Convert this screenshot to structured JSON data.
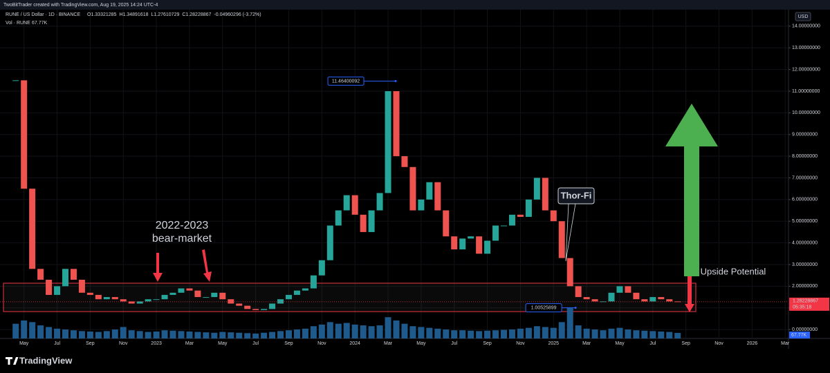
{
  "header": {
    "credit": "TwoBitTrader created with TradingView.com, Aug 19, 2025 14:24 UTC-4"
  },
  "footer": {
    "brand": "TradingView"
  },
  "chart_data": {
    "type": "candlestick",
    "title": "RUNE / US Dollar · 1D · BINANCE",
    "ohlc": [
      "O1.33321285",
      "H1.34891618",
      "L1.27610729",
      "C1.28228867",
      "-0.04960296 (-3.72%)"
    ],
    "volume_title": "Vol · RUNE",
    "volume_label": "67.77K",
    "currency": "USD",
    "up_color": "#26a69a",
    "down_color": "#ef5350",
    "volume_color": "#1e5a8c",
    "x": [
      3.5,
      4,
      4.5,
      5,
      5.5,
      6,
      6.5,
      7,
      7.5,
      8,
      8.5,
      9,
      9.5,
      10,
      10.5,
      11,
      11.5,
      12,
      12.5,
      13,
      13.5,
      14,
      14.5,
      15,
      15.5,
      16,
      16.5,
      17,
      17.5,
      18,
      18.5,
      19,
      19.5,
      20,
      20.5,
      21,
      21.5,
      22,
      22.5,
      23,
      23.5,
      24,
      24.5,
      25,
      25.5,
      26,
      26.5,
      27,
      27.5,
      28,
      28.5,
      29,
      29.5,
      30,
      30.5,
      31,
      31.5,
      32,
      32.5,
      33,
      33.5,
      34,
      34.5,
      35,
      35.5,
      36,
      36.5,
      37,
      37.5,
      38,
      38.5,
      39,
      39.5,
      40,
      40.5,
      41,
      41.5,
      42,
      42.5,
      43,
      43.5
    ],
    "values": [
      11.5,
      6.5,
      2.8,
      2.3,
      1.6,
      2.0,
      2.8,
      2.3,
      1.7,
      1.6,
      1.4,
      1.5,
      1.4,
      1.3,
      1.2,
      1.3,
      1.4,
      1.4,
      1.6,
      1.7,
      1.9,
      1.8,
      1.5,
      1.5,
      1.7,
      1.4,
      1.2,
      1.1,
      0.95,
      0.9,
      0.95,
      1.2,
      1.4,
      1.6,
      1.8,
      1.9,
      2.5,
      3.2,
      4.8,
      5.5,
      6.2,
      5.3,
      4.5,
      5.5,
      6.3,
      11.0,
      8.0,
      7.5,
      5.5,
      6.0,
      6.8,
      5.5,
      4.3,
      3.7,
      4.2,
      4.3,
      3.5,
      4.1,
      4.8,
      4.8,
      5.3,
      5.2,
      6.0,
      7.0,
      5.5,
      5.0,
      3.3,
      2.0,
      1.5,
      1.4,
      1.3,
      1.3,
      1.7,
      2.0,
      1.7,
      1.4,
      1.3,
      1.5,
      1.4,
      1.3,
      1.28
    ],
    "volume": [
      180,
      220,
      200,
      160,
      140,
      120,
      110,
      100,
      90,
      85,
      80,
      90,
      110,
      140,
      100,
      90,
      80,
      85,
      100,
      95,
      90,
      85,
      80,
      75,
      70,
      80,
      75,
      70,
      65,
      60,
      70,
      80,
      90,
      100,
      110,
      120,
      150,
      170,
      200,
      180,
      190,
      170,
      160,
      150,
      160,
      260,
      220,
      180,
      150,
      140,
      130,
      120,
      110,
      100,
      100,
      95,
      90,
      95,
      100,
      105,
      110,
      120,
      130,
      150,
      140,
      130,
      200,
      380,
      160,
      120,
      110,
      100,
      120,
      130,
      110,
      100,
      95,
      90,
      85,
      80,
      68
    ],
    "xlim": [
      2.55,
      50.2
    ],
    "ylim": [
      -0.41,
      14.76
    ],
    "xticks": [
      {
        "value": 4,
        "label": "May"
      },
      {
        "value": 6,
        "label": "Jul"
      },
      {
        "value": 8,
        "label": "Sep"
      },
      {
        "value": 10,
        "label": "Nov"
      },
      {
        "value": 12,
        "label": "2023"
      },
      {
        "value": 14,
        "label": "Mar"
      },
      {
        "value": 16,
        "label": "May"
      },
      {
        "value": 18,
        "label": "Jul"
      },
      {
        "value": 20,
        "label": "Sep"
      },
      {
        "value": 22,
        "label": "Nov"
      },
      {
        "value": 24,
        "label": "2024"
      },
      {
        "value": 26,
        "label": "Mar"
      },
      {
        "value": 28,
        "label": "May"
      },
      {
        "value": 30,
        "label": "Jul"
      },
      {
        "value": 32,
        "label": "Sep"
      },
      {
        "value": 34,
        "label": "Nov"
      },
      {
        "value": 36,
        "label": "2025"
      },
      {
        "value": 38,
        "label": "Mar"
      },
      {
        "value": 40,
        "label": "May"
      },
      {
        "value": 42,
        "label": "Jul"
      },
      {
        "value": 44,
        "label": "Sep"
      },
      {
        "value": 46,
        "label": "Nov"
      },
      {
        "value": 48,
        "label": "2026"
      },
      {
        "value": 50,
        "label": "Mar"
      }
    ],
    "yticks": [
      {
        "value": 0,
        "label": "0.00000000"
      },
      {
        "value": 1,
        "label": "1.00000000"
      },
      {
        "value": 2,
        "label": "2.00000000"
      },
      {
        "value": 3,
        "label": "3.00000000"
      },
      {
        "value": 4,
        "label": "4.00000000"
      },
      {
        "value": 5,
        "label": "5.00000000"
      },
      {
        "value": 6,
        "label": "6.00000000"
      },
      {
        "value": 7,
        "label": "7.00000000"
      },
      {
        "value": 8,
        "label": "8.00000000"
      },
      {
        "value": 9,
        "label": "9.00000000"
      },
      {
        "value": 10,
        "label": "10.00000000"
      },
      {
        "value": 11,
        "label": "11.00000000"
      },
      {
        "value": 12,
        "label": "12.00000000"
      },
      {
        "value": 13,
        "label": "13.00000000"
      },
      {
        "value": 14,
        "label": "14.00000000"
      }
    ],
    "last_price": 1.28228867,
    "countdown": "05:35:18",
    "zone": {
      "low": 0.83,
      "high": 2.14
    },
    "high_marker": {
      "x": 26.46,
      "value": 11.46400092
    },
    "low_marker": {
      "x": 37.33,
      "value": 1.00525899
    },
    "annotations": {
      "period": "2022-2023",
      "label": "bear-market",
      "event": "Thor-Fi",
      "outlook": "Upside Potential"
    }
  }
}
